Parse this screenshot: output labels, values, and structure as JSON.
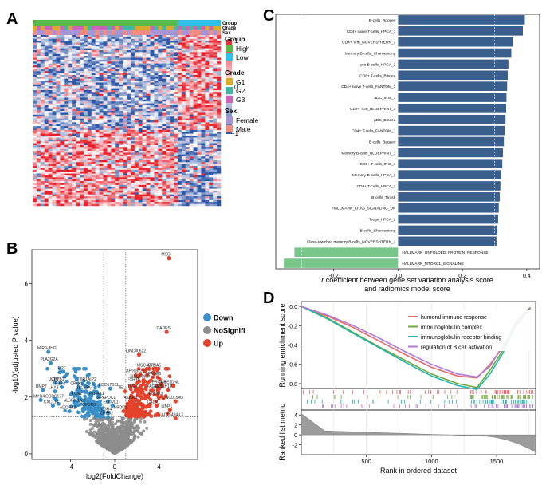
{
  "panels": {
    "A": {
      "label": "A",
      "track_labels": [
        "Group",
        "Grade",
        "Sex"
      ],
      "legend": {
        "scale_ticks": [
          "1",
          "0",
          "−1"
        ],
        "groups": [
          {
            "title": "Group",
            "items": [
              {
                "name": "High",
                "color": "#5bb947"
              },
              {
                "name": "Low",
                "color": "#2fbfe8"
              }
            ]
          },
          {
            "title": "Grade",
            "items": [
              {
                "name": "G1",
                "color": "#d8a92a"
              },
              {
                "name": "G2",
                "color": "#3fb7a5"
              },
              {
                "name": "G3",
                "color": "#cc63b6"
              }
            ]
          },
          {
            "title": "Sex",
            "items": [
              {
                "name": "Female",
                "color": "#a594d6"
              },
              {
                "name": "Male",
                "color": "#f08b80"
              }
            ]
          }
        ]
      },
      "colors": {
        "high": "#e8202a",
        "mid": "#ffffff",
        "low": "#2c56a8"
      }
    },
    "B": {
      "label": "B",
      "ylabel": "-log10(adjusted P value)",
      "xlabel": "log2(FoldChange)",
      "legend": [
        {
          "name": "Down",
          "color": "#3a8fc7"
        },
        {
          "name": "NoSignifi",
          "color": "#8c8c8c"
        },
        {
          "name": "Up",
          "color": "#e5422c"
        }
      ],
      "xticks": [
        "-4",
        "0",
        "4"
      ],
      "yticks": [
        "0",
        "2",
        "4",
        "6"
      ],
      "gene_labels": [
        {
          "text": "MSC",
          "x": 4.9,
          "y": 6.9
        },
        {
          "text": "CADPS",
          "x": 4.7,
          "y": 4.3
        },
        {
          "text": "LINC00622",
          "x": 2.2,
          "y": 3.5
        },
        {
          "text": "MSC-AS1",
          "x": 3.1,
          "y": 3.0
        },
        {
          "text": "EFNA5",
          "x": 3.9,
          "y": 3.0
        },
        {
          "text": "AP006222.1",
          "x": 2.3,
          "y": 2.8
        },
        {
          "text": "PAGE5",
          "x": 3.9,
          "y": 2.7
        },
        {
          "text": "LINC00824",
          "x": 2.6,
          "y": 2.6
        },
        {
          "text": "FSRY6",
          "x": 2.0,
          "y": 2.5
        },
        {
          "text": "PROM1",
          "x": 4.3,
          "y": 2.4
        },
        {
          "text": "UBE2DNL",
          "x": 5.3,
          "y": 2.4
        },
        {
          "text": "TSSC",
          "x": 1.9,
          "y": 2.25
        },
        {
          "text": "PAGE2B",
          "x": 3.9,
          "y": 2.25
        },
        {
          "text": "FOLH1P",
          "x": 4.8,
          "y": 2.25
        },
        {
          "text": "PHMA3",
          "x": 4.0,
          "y": 2.0
        },
        {
          "text": "LINC01506",
          "x": 5.5,
          "y": 1.85
        },
        {
          "text": "CALN1",
          "x": 3.8,
          "y": 1.7
        },
        {
          "text": "LINP1",
          "x": 5.0,
          "y": 1.55
        },
        {
          "text": "AC124944.2",
          "x": 5.5,
          "y": 1.25
        },
        {
          "text": "MIR9-3HG",
          "x": -6.0,
          "y": 3.6
        },
        {
          "text": "PLA2G2A",
          "x": -5.8,
          "y": 3.2
        },
        {
          "text": "IFI27",
          "x": -4.7,
          "y": 2.9
        },
        {
          "text": "TOR1AIP2",
          "x": -2.4,
          "y": 2.5
        },
        {
          "text": "UCP2",
          "x": -5.4,
          "y": 2.5
        },
        {
          "text": "ZBTB17",
          "x": -4.9,
          "y": 2.5
        },
        {
          "text": "FBP4",
          "x": -4.8,
          "y": 2.35
        },
        {
          "text": "CPLX1",
          "x": -3.3,
          "y": 2.35
        },
        {
          "text": "HSD17B11",
          "x": -0.4,
          "y": 2.3
        },
        {
          "text": "LHX2",
          "x": -5.4,
          "y": 2.2
        },
        {
          "text": "SLC35A4",
          "x": -2.6,
          "y": 2.2
        },
        {
          "text": "TE1",
          "x": 0.9,
          "y": 2.2
        },
        {
          "text": "BMP7",
          "x": -6.5,
          "y": 2.25
        },
        {
          "text": "KCN2",
          "x": -3.3,
          "y": 2.0
        },
        {
          "text": "PTP4A1",
          "x": -1.5,
          "y": 2.0
        },
        {
          "text": "PPAPDC1",
          "x": -0.6,
          "y": 1.85
        },
        {
          "text": "ACKR3",
          "x": 1.7,
          "y": 1.85
        },
        {
          "text": "MYH4",
          "x": -6.7,
          "y": 1.9
        },
        {
          "text": "CCDC177",
          "x": -5.3,
          "y": 1.9
        },
        {
          "text": "CXCL14",
          "x": -5.6,
          "y": 1.7
        },
        {
          "text": "AL603816.2",
          "x": -3.5,
          "y": 1.75
        },
        {
          "text": "TGFBR3",
          "x": -2.3,
          "y": 1.6
        },
        {
          "text": "ELOVL1",
          "x": -0.2,
          "y": 1.7
        },
        {
          "text": "ADORA2",
          "x": -4.1,
          "y": 1.5
        },
        {
          "text": "LGR4",
          "x": -0.6,
          "y": 1.45
        },
        {
          "text": "NPDC1",
          "x": 0.8,
          "y": 1.5
        },
        {
          "text": "CPEB2",
          "x": -0.6,
          "y": 1.3
        }
      ]
    },
    "C": {
      "label": "C",
      "xlabel_line1": "r coefficient between gene set variation analysis score",
      "xlabel_line2": "and radiomics model score",
      "xticks": [
        "-0.2",
        "0.0",
        "0.2",
        "0.4"
      ],
      "colors": {
        "positive": "#3b5f8c",
        "negative": "#79c68a"
      }
    },
    "D": {
      "label": "D",
      "ylabel_top": "Running enrichment score",
      "ylabel_bottom": "Ranked list metric",
      "xlabel": "Rank in ordered dataset",
      "xticks": [
        "500",
        "1000",
        "1500"
      ],
      "yticks_top": [
        "0.0",
        "-0.2",
        "-0.4",
        "-0.6",
        "-0.8"
      ],
      "yticks_bottom": [
        "4",
        "2",
        "0",
        "-2"
      ],
      "legend": [
        {
          "name": "humoral immune response",
          "color": "#e8686a"
        },
        {
          "name": "immunoglobulin complex",
          "color": "#6ea83a"
        },
        {
          "name": "immunoglobulin receptor binding",
          "color": "#23b5b0"
        },
        {
          "name": "regulation of B cell activation",
          "color": "#b07ad8"
        }
      ]
    }
  },
  "chart_data": [
    {
      "type": "heatmap",
      "panel": "A",
      "title": "",
      "annotation_tracks": [
        "Group",
        "Grade",
        "Sex"
      ],
      "groups": {
        "High": 37,
        "Low": 11
      },
      "scale_range": [
        -1,
        1
      ]
    },
    {
      "type": "scatter",
      "panel": "B",
      "title": "",
      "xlabel": "log2(FoldChange)",
      "ylabel": "-log10(adjusted P value)",
      "xlim": [
        -7.5,
        7.5
      ],
      "ylim": [
        -0.2,
        7.2
      ],
      "thresholds": {
        "x": [
          -1,
          1
        ],
        "y": 1.3
      }
    },
    {
      "type": "bar",
      "panel": "C",
      "title": "",
      "xlabel": "r coefficient between gene set variation analysis score and radiomics model score",
      "xlim": [
        -0.38,
        0.44
      ],
      "categories": [
        "B-cells_Rooney",
        "CD4+ naive T-cells_HPCA_1",
        "CD4+ Tcm_NOVERSHTERN_2",
        "Memory B-cells_Charoentong",
        "pro B-cells_HPCA_2",
        "CD8+ T-cells_Bindea",
        "CD4+ naive T-cells_FANTOM_3",
        "aDC_IRIS_1",
        "CD8+ Tcm_BLUEPRINT_3",
        "pDC_Bindea",
        "CD4+ T-cells_FANTOM_1",
        "B-cells_Bagaev",
        "Memory B-cells_BLUEPRINT_1",
        "CD8+ T-cells_IRIS_1",
        "Memory B-cells_HPCA_3",
        "CD8+ T-cells_HPCA_3",
        "B-cells_Tirosh",
        "HALLMARK_KRAS_SIGNALING_DN",
        "Tregs_HPCA_2",
        "B-cells_Charoentong",
        "Class-switched memory B-cells_NOVERSHTERN_2",
        "HALLMARK_UNFOLDED_PROTEIN_RESPONSE",
        "HALLMARK_MTORC1_SIGNALING"
      ],
      "values": [
        0.394,
        0.388,
        0.358,
        0.352,
        0.343,
        0.341,
        0.339,
        0.337,
        0.336,
        0.334,
        0.331,
        0.329,
        0.326,
        0.324,
        0.321,
        0.318,
        0.316,
        0.313,
        0.311,
        0.309,
        0.306,
        -0.322,
        -0.355
      ]
    },
    {
      "type": "line",
      "panel": "D",
      "title": "",
      "xlabel": "Rank in ordered dataset",
      "ylabel": "Running enrichment score",
      "xlim": [
        0,
        1800
      ],
      "ylim": [
        -0.85,
        0.05
      ],
      "x": [
        0,
        200,
        400,
        600,
        800,
        1000,
        1200,
        1350,
        1450,
        1550,
        1650,
        1760
      ],
      "series": [
        {
          "name": "humoral immune response",
          "values": [
            0.0,
            -0.1,
            -0.22,
            -0.36,
            -0.5,
            -0.63,
            -0.72,
            -0.74,
            -0.6,
            -0.42,
            -0.18,
            -0.02
          ]
        },
        {
          "name": "immunoglobulin complex",
          "values": [
            0.0,
            -0.12,
            -0.27,
            -0.42,
            -0.56,
            -0.7,
            -0.8,
            -0.84,
            -0.66,
            -0.45,
            -0.15,
            -0.01
          ]
        },
        {
          "name": "immunoglobulin receptor binding",
          "values": [
            0.0,
            -0.13,
            -0.28,
            -0.43,
            -0.58,
            -0.72,
            -0.82,
            -0.86,
            -0.7,
            -0.48,
            -0.18,
            -0.02
          ]
        },
        {
          "name": "regulation of B cell activation",
          "values": [
            0.0,
            -0.09,
            -0.2,
            -0.33,
            -0.47,
            -0.6,
            -0.7,
            -0.73,
            -0.62,
            -0.4,
            -0.2,
            -0.02
          ]
        }
      ]
    }
  ]
}
